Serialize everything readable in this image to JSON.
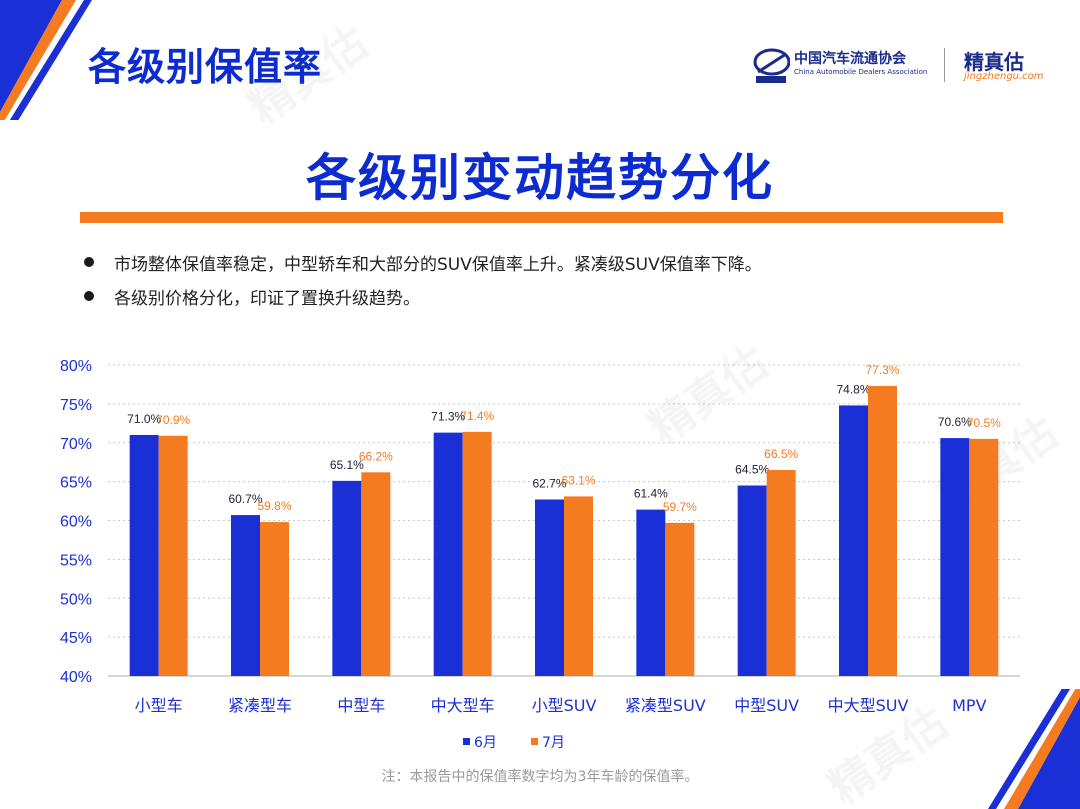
{
  "header": {
    "section_title": "各级别保值率",
    "org_name": "中国汽车流通协会",
    "org_name_en": "China Automobile Dealers Association",
    "brand_name": "精真估",
    "brand_url": "jingzhengu.com",
    "watermark_text": "精真估"
  },
  "main_title": "各级别变动趋势分化",
  "bullets": [
    "市场整体保值率稳定，中型轿车和大部分的SUV保值率上升。紧凑级SUV保值率下降。",
    "各级别价格分化，印证了置换升级趋势。"
  ],
  "chart_data": {
    "type": "bar",
    "categories": [
      "小型车",
      "紧凑型车",
      "中型车",
      "中大型车",
      "小型SUV",
      "紧凑型SUV",
      "中型SUV",
      "中大型SUV",
      "MPV"
    ],
    "series": [
      {
        "name": "6月",
        "color": "#1b2fd6",
        "values": [
          71.0,
          60.7,
          65.1,
          71.3,
          62.7,
          61.4,
          64.5,
          74.8,
          70.6
        ],
        "labels": [
          "71.0%",
          "60.7%",
          "65.1%",
          "71.3%",
          "62.7%",
          "61.4%",
          "64.5%",
          "74.8%",
          "70.6%"
        ]
      },
      {
        "name": "7月",
        "color": "#f47b20",
        "values": [
          70.9,
          59.8,
          66.2,
          71.4,
          63.1,
          59.7,
          66.5,
          77.3,
          70.5
        ],
        "labels": [
          "70.9%",
          "59.8%",
          "66.2%",
          "71.4%",
          "63.1%",
          "59.7%",
          "66.5%",
          "77.3%",
          "70.5%"
        ]
      }
    ],
    "ylim": [
      40,
      80
    ],
    "yticks": [
      "80%",
      "75%",
      "70%",
      "65%",
      "60%",
      "55%",
      "50%",
      "45%",
      "40%"
    ],
    "ytick_values": [
      80,
      75,
      70,
      65,
      60,
      55,
      50,
      45,
      40
    ],
    "grid": true,
    "legend_position": "bottom"
  },
  "footnote": "注：本报告中的保值率数字均为3年车龄的保值率。",
  "colors": {
    "accent_blue": "#0d2ccf",
    "accent_orange": "#f47b20"
  }
}
